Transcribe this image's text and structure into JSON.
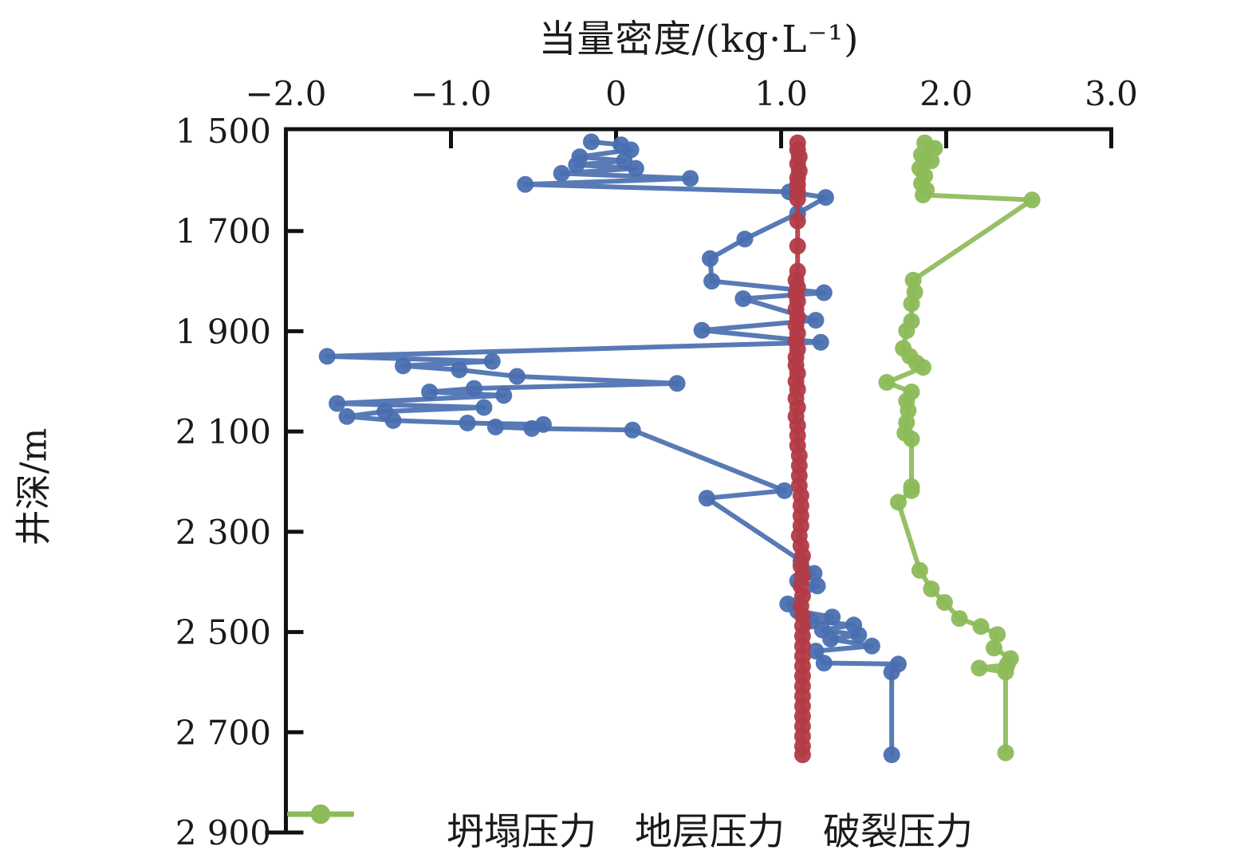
{
  "chart_data": {
    "type": "line",
    "orientation": "depth-profile",
    "title": "当量密度/(kg·L⁻¹)",
    "xlabel": "当量密度/(kg·L⁻¹)",
    "ylabel": "井深/m",
    "grid": false,
    "x_axis": {
      "position": "top",
      "min": -2.0,
      "max": 3.0,
      "tick_labels": [
        "−2.0",
        "−1.0",
        "0",
        "1.0",
        "2.0",
        "3.0"
      ],
      "tick_values": [
        -2,
        -1,
        0,
        1,
        2,
        3
      ]
    },
    "y_axis": {
      "position": "left",
      "min": 1500,
      "max": 2900,
      "inverted": true,
      "tick_labels": [
        "1 500",
        "1 700",
        "1 900",
        "2 100",
        "2 300",
        "2 500",
        "2 700",
        "2 900"
      ],
      "tick_values": [
        1500,
        1700,
        1900,
        2100,
        2300,
        2500,
        2700,
        2900
      ]
    },
    "legend": {
      "position": "bottom"
    },
    "axis_color": "#111111",
    "series": [
      {
        "name": "坍塌压力",
        "color": "#4a6fb0",
        "marker": "circle",
        "points": [
          [
            -0.15,
            1522
          ],
          [
            0.03,
            1528
          ],
          [
            0.09,
            1538
          ],
          [
            -0.22,
            1552
          ],
          [
            0.05,
            1560
          ],
          [
            -0.24,
            1568
          ],
          [
            0.12,
            1575
          ],
          [
            -0.33,
            1585
          ],
          [
            0.45,
            1595
          ],
          [
            -0.55,
            1607
          ],
          [
            1.05,
            1622
          ],
          [
            1.27,
            1633
          ],
          [
            1.1,
            1665
          ],
          [
            0.78,
            1716
          ],
          [
            0.57,
            1755
          ],
          [
            0.58,
            1800
          ],
          [
            1.26,
            1823
          ],
          [
            0.77,
            1835
          ],
          [
            1.21,
            1878
          ],
          [
            0.52,
            1898
          ],
          [
            1.24,
            1922
          ],
          [
            -1.75,
            1950
          ],
          [
            -0.75,
            1960
          ],
          [
            -1.29,
            1969
          ],
          [
            -0.95,
            1977
          ],
          [
            -0.6,
            1990
          ],
          [
            0.37,
            2004
          ],
          [
            -0.86,
            2014
          ],
          [
            -1.13,
            2021
          ],
          [
            -0.68,
            2028
          ],
          [
            -1.69,
            2044
          ],
          [
            -0.8,
            2052
          ],
          [
            -1.4,
            2060
          ],
          [
            -1.63,
            2070
          ],
          [
            -1.35,
            2078
          ],
          [
            -0.9,
            2083
          ],
          [
            -0.44,
            2086
          ],
          [
            -0.73,
            2091
          ],
          [
            -0.51,
            2094
          ],
          [
            0.1,
            2097
          ],
          [
            1.02,
            2218
          ],
          [
            0.55,
            2233
          ],
          [
            1.12,
            2358
          ],
          [
            1.2,
            2383
          ],
          [
            1.1,
            2398
          ],
          [
            1.22,
            2408
          ],
          [
            1.04,
            2444
          ],
          [
            1.1,
            2458
          ],
          [
            1.31,
            2470
          ],
          [
            1.18,
            2478
          ],
          [
            1.44,
            2486
          ],
          [
            1.25,
            2496
          ],
          [
            1.47,
            2506
          ],
          [
            1.3,
            2514
          ],
          [
            1.55,
            2528
          ],
          [
            1.21,
            2538
          ],
          [
            1.26,
            2562
          ],
          [
            1.71,
            2564
          ],
          [
            1.67,
            2580
          ],
          [
            1.67,
            2745
          ]
        ]
      },
      {
        "name": "地层压力",
        "color": "#b23b47",
        "marker": "circle",
        "points": [
          [
            1.1,
            1524
          ],
          [
            1.1,
            1538
          ],
          [
            1.11,
            1552
          ],
          [
            1.1,
            1566
          ],
          [
            1.11,
            1580
          ],
          [
            1.1,
            1594
          ],
          [
            1.1,
            1608
          ],
          [
            1.1,
            1622
          ],
          [
            1.1,
            1636
          ],
          [
            1.1,
            1680
          ],
          [
            1.1,
            1730
          ],
          [
            1.1,
            1780
          ],
          [
            1.09,
            1798
          ],
          [
            1.1,
            1812
          ],
          [
            1.09,
            1826
          ],
          [
            1.1,
            1840
          ],
          [
            1.09,
            1856
          ],
          [
            1.1,
            1872
          ],
          [
            1.09,
            1888
          ],
          [
            1.1,
            1904
          ],
          [
            1.09,
            1920
          ],
          [
            1.1,
            1936
          ],
          [
            1.09,
            1952
          ],
          [
            1.09,
            1968
          ],
          [
            1.1,
            1984
          ],
          [
            1.09,
            2000
          ],
          [
            1.1,
            2016
          ],
          [
            1.09,
            2034
          ],
          [
            1.1,
            2052
          ],
          [
            1.09,
            2070
          ],
          [
            1.1,
            2088
          ],
          [
            1.1,
            2108
          ],
          [
            1.1,
            2128
          ],
          [
            1.11,
            2148
          ],
          [
            1.11,
            2168
          ],
          [
            1.11,
            2188
          ],
          [
            1.11,
            2208
          ],
          [
            1.12,
            2228
          ],
          [
            1.12,
            2248
          ],
          [
            1.12,
            2268
          ],
          [
            1.12,
            2288
          ],
          [
            1.11,
            2308
          ],
          [
            1.12,
            2328
          ],
          [
            1.13,
            2348
          ],
          [
            1.12,
            2368
          ],
          [
            1.13,
            2388
          ],
          [
            1.12,
            2408
          ],
          [
            1.13,
            2428
          ],
          [
            1.12,
            2448
          ],
          [
            1.13,
            2468
          ],
          [
            1.13,
            2488
          ],
          [
            1.13,
            2508
          ],
          [
            1.13,
            2528
          ],
          [
            1.13,
            2548
          ],
          [
            1.13,
            2568
          ],
          [
            1.13,
            2588
          ],
          [
            1.13,
            2608
          ],
          [
            1.13,
            2628
          ],
          [
            1.13,
            2648
          ],
          [
            1.13,
            2668
          ],
          [
            1.13,
            2688
          ],
          [
            1.13,
            2708
          ],
          [
            1.13,
            2728
          ],
          [
            1.13,
            2745
          ]
        ]
      },
      {
        "name": "破裂压力",
        "color": "#8cbb59",
        "marker": "circle",
        "points": [
          [
            1.87,
            1524
          ],
          [
            1.93,
            1535
          ],
          [
            1.85,
            1548
          ],
          [
            1.91,
            1560
          ],
          [
            1.84,
            1575
          ],
          [
            1.87,
            1590
          ],
          [
            1.85,
            1605
          ],
          [
            1.88,
            1618
          ],
          [
            1.86,
            1628
          ],
          [
            2.52,
            1638
          ],
          [
            1.8,
            1798
          ],
          [
            1.81,
            1822
          ],
          [
            1.79,
            1845
          ],
          [
            1.79,
            1880
          ],
          [
            1.76,
            1899
          ],
          [
            1.74,
            1934
          ],
          [
            1.78,
            1950
          ],
          [
            1.82,
            1963
          ],
          [
            1.86,
            1972
          ],
          [
            1.64,
            2002
          ],
          [
            1.79,
            2021
          ],
          [
            1.76,
            2039
          ],
          [
            1.77,
            2058
          ],
          [
            1.76,
            2082
          ],
          [
            1.75,
            2103
          ],
          [
            1.79,
            2115
          ],
          [
            1.79,
            2210
          ],
          [
            1.79,
            2218
          ],
          [
            1.71,
            2241
          ],
          [
            1.84,
            2377
          ],
          [
            1.91,
            2414
          ],
          [
            1.99,
            2441
          ],
          [
            2.08,
            2473
          ],
          [
            2.21,
            2489
          ],
          [
            2.31,
            2505
          ],
          [
            2.29,
            2532
          ],
          [
            2.39,
            2553
          ],
          [
            2.37,
            2565
          ],
          [
            2.2,
            2572
          ],
          [
            2.36,
            2580
          ],
          [
            2.36,
            2741
          ]
        ]
      }
    ]
  }
}
